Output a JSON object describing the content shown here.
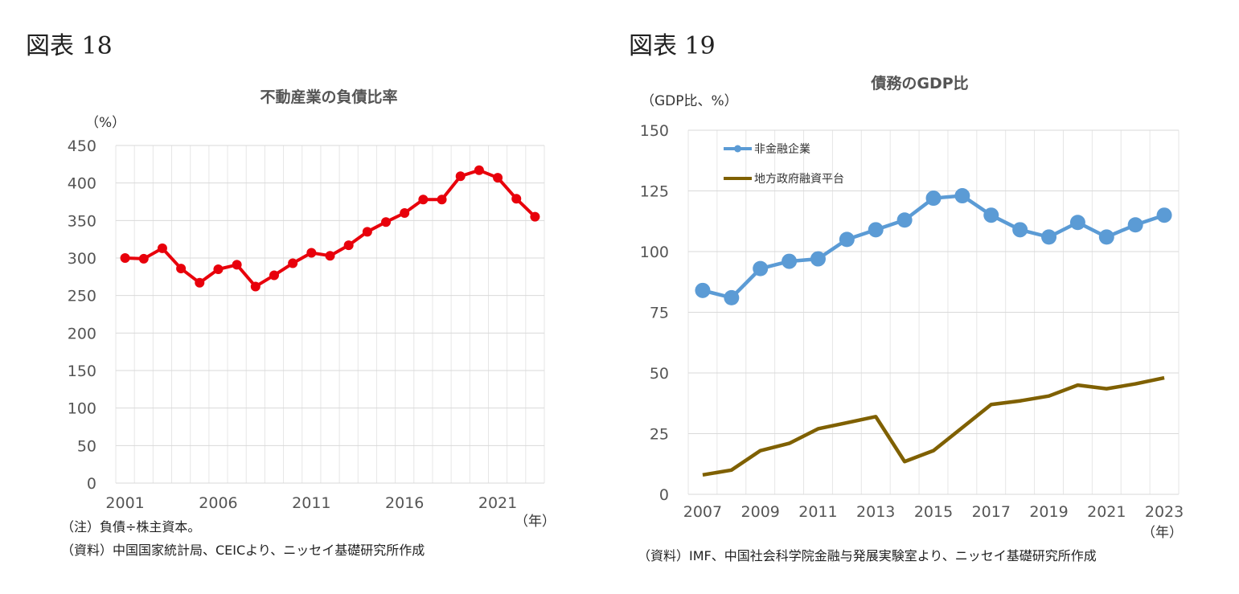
{
  "fig18": {
    "label": "図表 18",
    "unit": "（%）",
    "x_unit": "（年）",
    "note1": "（注）負債÷株主資本。",
    "note2": "（資料）中国国家統計局、CEICより、ニッセイ基礎研究所作成"
  },
  "fig19": {
    "label": "図表 19",
    "unit": "（GDP比、%）",
    "x_unit": "（年）",
    "source": "（資料）IMF、中国社会科学院金融与発展実験室より、ニッセイ基礎研究所作成"
  },
  "chart_data": [
    {
      "type": "line",
      "title": "不動産業の負債比率",
      "ylabel": "（%）",
      "xlabel": "（年）",
      "ylim": [
        0,
        450
      ],
      "yticks": [
        0,
        50,
        100,
        150,
        200,
        250,
        300,
        350,
        400,
        450
      ],
      "xtick_labels": [
        "2001",
        "2006",
        "2011",
        "2016",
        "2021"
      ],
      "x": [
        2001,
        2002,
        2003,
        2004,
        2005,
        2006,
        2007,
        2008,
        2009,
        2010,
        2011,
        2012,
        2013,
        2014,
        2015,
        2016,
        2017,
        2018,
        2019,
        2020,
        2021,
        2022,
        2023
      ],
      "series": [
        {
          "values": [
            300,
            299,
            313,
            286,
            267,
            285,
            291,
            262,
            277,
            293,
            307,
            303,
            317,
            335,
            348,
            360,
            378,
            378,
            409,
            417,
            407,
            379,
            355
          ],
          "color": "#e8000b",
          "marker": "circle"
        }
      ],
      "grid": true
    },
    {
      "type": "line",
      "title": "債務のGDP比",
      "ylabel": "（GDP比、%）",
      "xlabel": "（年）",
      "ylim": [
        0,
        150
      ],
      "yticks": [
        0,
        25,
        50,
        75,
        100,
        125,
        150
      ],
      "xtick_labels": [
        "2007",
        "2009",
        "2011",
        "2013",
        "2015",
        "2017",
        "2019",
        "2021",
        "2023"
      ],
      "x": [
        2007,
        2008,
        2009,
        2010,
        2011,
        2012,
        2013,
        2014,
        2015,
        2016,
        2017,
        2018,
        2019,
        2020,
        2021,
        2022,
        2023
      ],
      "series": [
        {
          "name": "非金融企業",
          "values": [
            84,
            81,
            93,
            96,
            97,
            105,
            109,
            113,
            122,
            123,
            115,
            109,
            106,
            112,
            106,
            111,
            115
          ],
          "color": "#5b9bd5",
          "marker": "circle"
        },
        {
          "name": "地方政府融資平台",
          "values": [
            8,
            10,
            18,
            21,
            27,
            29.5,
            32,
            13.5,
            18,
            27.5,
            37,
            38.5,
            40.5,
            45,
            43.5,
            45.5,
            48
          ],
          "color": "#7f6000",
          "marker": "none"
        }
      ],
      "legend": "top-left",
      "grid": true
    }
  ]
}
